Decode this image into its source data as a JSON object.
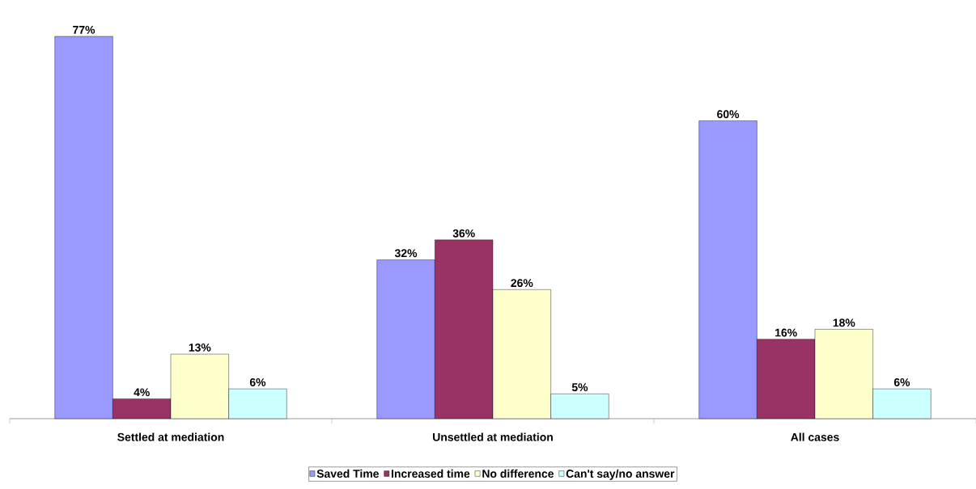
{
  "chart_data": {
    "type": "bar",
    "categories": [
      "Settled at mediation",
      "Unsettled at mediation",
      "All cases"
    ],
    "series": [
      {
        "name": "Saved Time",
        "color": "#9999ff",
        "values": [
          77,
          32,
          60
        ],
        "value_labels": [
          "77%",
          "32%",
          "60%"
        ]
      },
      {
        "name": "Increased time",
        "color": "#993366",
        "values": [
          4,
          36,
          16
        ],
        "value_labels": [
          "4%",
          "36%",
          "16%"
        ]
      },
      {
        "name": "No difference",
        "color": "#ffffcc",
        "values": [
          13,
          26,
          18
        ],
        "value_labels": [
          "13%",
          "26%",
          "18%"
        ]
      },
      {
        "name": "Can't say/no answer",
        "color": "#ccffff",
        "values": [
          6,
          5,
          6
        ],
        "value_labels": [
          "6%",
          "5%",
          "6%"
        ]
      }
    ],
    "legend": "bottom"
  }
}
